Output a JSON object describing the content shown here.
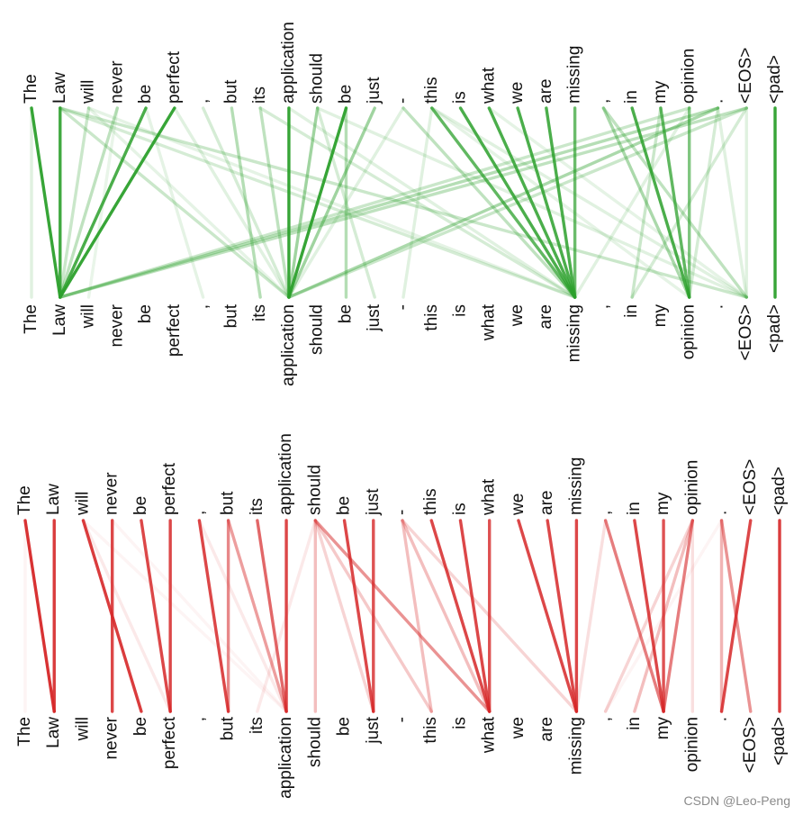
{
  "tokens": [
    "The",
    "Law",
    "will",
    "never",
    "be",
    "perfect",
    ",",
    "but",
    "its",
    "application",
    "should",
    "be",
    "just",
    "-",
    "this",
    "is",
    "what",
    "we",
    "are",
    "missing",
    ",",
    "in",
    "my",
    "opinion",
    ".",
    "<EOS>",
    "<pad>"
  ],
  "watermark": "CSDN @Leo-Peng",
  "panels": [
    {
      "name": "green-attention-panel",
      "color": "#2ca02c",
      "links": [
        [
          0,
          1,
          0.95
        ],
        [
          1,
          1,
          0.9
        ],
        [
          2,
          1,
          0.25
        ],
        [
          3,
          1,
          0.3
        ],
        [
          4,
          1,
          0.85
        ],
        [
          5,
          1,
          0.95
        ],
        [
          0,
          0,
          0.15
        ],
        [
          1,
          9,
          0.25
        ],
        [
          1,
          19,
          0.2
        ],
        [
          1,
          25,
          0.25
        ],
        [
          2,
          9,
          0.12
        ],
        [
          2,
          19,
          0.12
        ],
        [
          3,
          2,
          0.1
        ],
        [
          4,
          6,
          0.12
        ],
        [
          5,
          9,
          0.15
        ],
        [
          6,
          9,
          0.2
        ],
        [
          7,
          8,
          0.35
        ],
        [
          8,
          9,
          0.3
        ],
        [
          9,
          9,
          0.95
        ],
        [
          10,
          9,
          0.45
        ],
        [
          11,
          9,
          0.95
        ],
        [
          12,
          9,
          0.45
        ],
        [
          8,
          19,
          0.2
        ],
        [
          9,
          19,
          0.15
        ],
        [
          10,
          12,
          0.2
        ],
        [
          11,
          11,
          0.35
        ],
        [
          10,
          25,
          0.15
        ],
        [
          13,
          9,
          0.15
        ],
        [
          14,
          19,
          0.75
        ],
        [
          15,
          19,
          0.85
        ],
        [
          16,
          19,
          0.85
        ],
        [
          17,
          19,
          0.85
        ],
        [
          18,
          19,
          0.85
        ],
        [
          19,
          19,
          0.7
        ],
        [
          13,
          19,
          0.3
        ],
        [
          14,
          25,
          0.15
        ],
        [
          16,
          25,
          0.12
        ],
        [
          14,
          23,
          0.12
        ],
        [
          14,
          13,
          0.15
        ],
        [
          20,
          23,
          0.4
        ],
        [
          21,
          23,
          0.85
        ],
        [
          22,
          23,
          0.75
        ],
        [
          23,
          23,
          0.6
        ],
        [
          20,
          25,
          0.3
        ],
        [
          23,
          1,
          0.25
        ],
        [
          24,
          1,
          0.35
        ],
        [
          25,
          1,
          0.3
        ],
        [
          24,
          9,
          0.4
        ],
        [
          25,
          9,
          0.25
        ],
        [
          23,
          19,
          0.15
        ],
        [
          24,
          23,
          0.2
        ],
        [
          25,
          25,
          0.15
        ],
        [
          22,
          21,
          0.25
        ],
        [
          25,
          21,
          0.2
        ],
        [
          24,
          25,
          0.15
        ],
        [
          26,
          26,
          0.95
        ]
      ]
    },
    {
      "name": "red-attention-panel",
      "color": "#d62728",
      "links": [
        [
          0,
          1,
          0.95
        ],
        [
          1,
          1,
          0.9
        ],
        [
          0,
          0,
          0.05
        ],
        [
          2,
          4,
          0.9
        ],
        [
          3,
          3,
          0.85
        ],
        [
          4,
          5,
          0.85
        ],
        [
          5,
          5,
          0.85
        ],
        [
          2,
          5,
          0.1
        ],
        [
          3,
          9,
          0.05
        ],
        [
          2,
          9,
          0.05
        ],
        [
          6,
          7,
          0.85
        ],
        [
          7,
          7,
          0.55
        ],
        [
          7,
          9,
          0.45
        ],
        [
          8,
          9,
          0.7
        ],
        [
          9,
          9,
          0.85
        ],
        [
          6,
          9,
          0.1
        ],
        [
          10,
          10,
          0.3
        ],
        [
          10,
          16,
          0.5
        ],
        [
          10,
          14,
          0.25
        ],
        [
          10,
          12,
          0.2
        ],
        [
          10,
          8,
          0.1
        ],
        [
          11,
          12,
          0.85
        ],
        [
          12,
          12,
          0.8
        ],
        [
          13,
          14,
          0.3
        ],
        [
          13,
          16,
          0.3
        ],
        [
          14,
          16,
          0.85
        ],
        [
          15,
          16,
          0.85
        ],
        [
          16,
          16,
          0.8
        ],
        [
          13,
          19,
          0.2
        ],
        [
          17,
          19,
          0.85
        ],
        [
          18,
          19,
          0.85
        ],
        [
          19,
          19,
          0.85
        ],
        [
          20,
          22,
          0.6
        ],
        [
          21,
          22,
          0.85
        ],
        [
          22,
          22,
          0.8
        ],
        [
          23,
          22,
          0.6
        ],
        [
          20,
          19,
          0.15
        ],
        [
          23,
          21,
          0.3
        ],
        [
          23,
          20,
          0.2
        ],
        [
          23,
          23,
          0.15
        ],
        [
          24,
          25,
          0.5
        ],
        [
          25,
          24,
          0.85
        ],
        [
          24,
          24,
          0.35
        ],
        [
          24,
          20,
          0.05
        ],
        [
          26,
          26,
          0.9
        ]
      ]
    }
  ]
}
